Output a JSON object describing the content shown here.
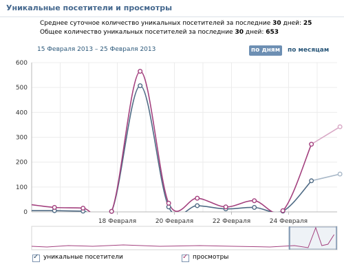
{
  "header": {
    "title": "Уникальные посетители и просмотры"
  },
  "stats": [
    {
      "prefix": "Среднее суточное количество уникальных посетителей за последние ",
      "days": "30",
      "mid": " дней: ",
      "value": "25"
    },
    {
      "prefix": "Общее количество уникальных посетителей за последние ",
      "days": "30",
      "mid": " дней: ",
      "value": "653"
    }
  ],
  "controls": {
    "date_range": "15 Февраля 2013 – 25 Февраля 2013",
    "by_days": "по дням",
    "by_months": "по месяцам"
  },
  "legend": {
    "unique": "уникальные посетители",
    "views": "просмотры"
  },
  "colors": {
    "unique": "#4f6b85",
    "views": "#a3407e",
    "unique_future": "#a8b8c8",
    "views_future": "#d9a9c6"
  },
  "chart_data": {
    "type": "line",
    "ylim": [
      0,
      600
    ],
    "yticks": [
      0,
      100,
      200,
      300,
      400,
      500,
      600
    ],
    "xlim": [
      15,
      25.7
    ],
    "xticks": [
      {
        "x": 18,
        "label": "18 Февраля"
      },
      {
        "x": 20,
        "label": "20 Февраля"
      },
      {
        "x": 22,
        "label": "22 Февраля"
      },
      {
        "x": 24,
        "label": "24 Февраля"
      }
    ],
    "x": [
      15.8,
      16.8,
      17.8,
      18.8,
      19.8,
      20.8,
      21.8,
      22.8,
      23.8,
      24.8,
      25.8
    ],
    "series": [
      {
        "name": "уникальные посетители",
        "values": [
          5,
          3,
          2,
          507,
          20,
          25,
          12,
          18,
          3,
          125,
          152
        ],
        "future_from": 9
      },
      {
        "name": "просмотры",
        "values": [
          18,
          15,
          2,
          565,
          35,
          55,
          20,
          45,
          5,
          272,
          342
        ],
        "future_from": 9
      }
    ]
  }
}
